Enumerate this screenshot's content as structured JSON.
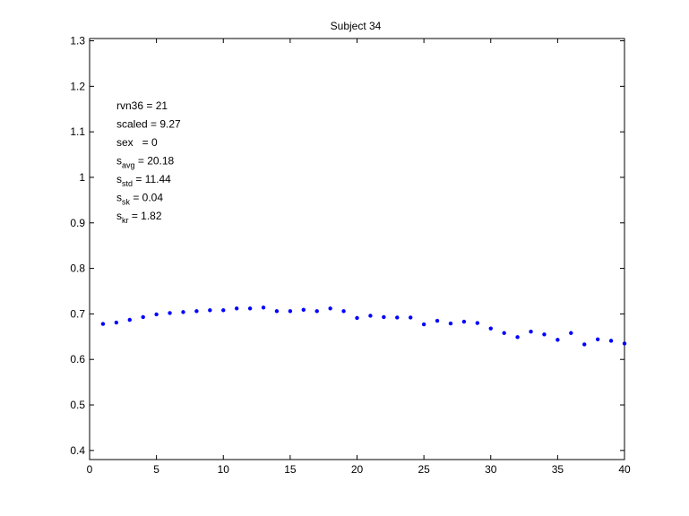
{
  "chart_data": {
    "type": "scatter",
    "title": "Subject 34",
    "xlabel": "",
    "ylabel": "",
    "xlim": [
      0,
      40
    ],
    "ylim": [
      0.38,
      1.305
    ],
    "x_ticks": [
      0,
      5,
      10,
      15,
      20,
      25,
      30,
      35,
      40
    ],
    "x_tick_labels": [
      "0",
      "5",
      "10",
      "15",
      "20",
      "25",
      "30",
      "35",
      "40"
    ],
    "y_ticks": [
      0.4,
      0.5,
      0.6,
      0.7,
      0.8,
      0.9,
      1.0,
      1.1,
      1.2,
      1.3
    ],
    "y_tick_labels": [
      "0.4",
      "0.5",
      "0.6",
      "0.7",
      "0.8",
      "0.9",
      "1",
      "1.1",
      "1.2",
      "1.3"
    ],
    "grid": false,
    "marker_color": "#0000ff",
    "series": [
      {
        "x": [
          1,
          2,
          3,
          4,
          5,
          6,
          7,
          8,
          9,
          10,
          11,
          12,
          13,
          14,
          15,
          16,
          17,
          18,
          19,
          20,
          21,
          22,
          23,
          24,
          25,
          26,
          27,
          28,
          29,
          30,
          31,
          32,
          33,
          34,
          35,
          36,
          37,
          38,
          39,
          40
        ],
        "y": [
          0.678,
          0.681,
          0.687,
          0.693,
          0.699,
          0.702,
          0.704,
          0.706,
          0.708,
          0.708,
          0.712,
          0.712,
          0.714,
          0.706,
          0.706,
          0.709,
          0.706,
          0.712,
          0.706,
          0.691,
          0.696,
          0.693,
          0.692,
          0.692,
          0.677,
          0.685,
          0.679,
          0.683,
          0.68,
          0.668,
          0.658,
          0.649,
          0.661,
          0.655,
          0.643,
          0.658,
          0.633,
          0.644,
          0.641,
          0.635
        ]
      }
    ]
  },
  "annotations": [
    {
      "base": "rvn36 = 21",
      "sub": "",
      "rest": ""
    },
    {
      "base": "scaled = 9.27",
      "sub": "",
      "rest": ""
    },
    {
      "base": "sex   = 0",
      "sub": "",
      "rest": ""
    },
    {
      "base": "s",
      "sub": "avg",
      "rest": " = 20.18"
    },
    {
      "base": "s",
      "sub": "std",
      "rest": " = 11.44"
    },
    {
      "base": "s",
      "sub": "sk",
      "rest": " = 0.04"
    },
    {
      "base": "s",
      "sub": "kr",
      "rest": " = 1.82"
    }
  ]
}
